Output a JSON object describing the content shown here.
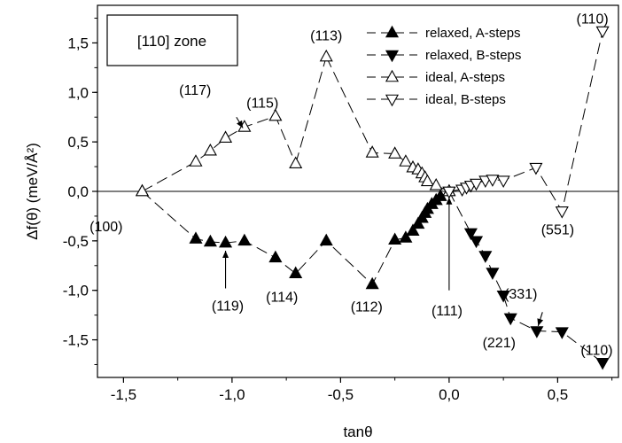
{
  "chart_data": {
    "type": "line",
    "title": "",
    "xlabel": "tanθ",
    "ylabel": "Δf(θ) (meV/Å²)",
    "xlim": [
      -1.62,
      0.78
    ],
    "ylim": [
      -1.88,
      1.88
    ],
    "xticks": [
      -1.5,
      -1.0,
      -0.5,
      0.0,
      0.5
    ],
    "xtick_labels": [
      "-1,5",
      "-1,0",
      "-0,5",
      "0,0",
      "0,5"
    ],
    "yticks": [
      -1.5,
      -1.0,
      -0.5,
      0.0,
      0.5,
      1.0,
      1.5
    ],
    "ytick_labels": [
      "-1,5",
      "-1,0",
      "-0,5",
      "0,0",
      "0,5",
      "1,0",
      "1,5"
    ],
    "zone_label": "[110] zone",
    "legend_position": "top-right",
    "series": [
      {
        "name": "relaxed, A-steps",
        "marker": "triangle-up-filled",
        "x": [
          -1.414,
          -1.167,
          -1.1,
          -1.03,
          -0.943,
          -0.8,
          -0.707,
          -0.566,
          -0.354,
          -0.25,
          -0.2,
          -0.167,
          -0.143,
          -0.125,
          -0.111,
          -0.1,
          -0.08,
          -0.06,
          -0.04,
          0.0
        ],
        "y": [
          0.0,
          -0.48,
          -0.51,
          -0.52,
          -0.5,
          -0.67,
          -0.83,
          -0.5,
          -0.94,
          -0.49,
          -0.47,
          -0.4,
          -0.33,
          -0.27,
          -0.22,
          -0.18,
          -0.13,
          -0.09,
          -0.05,
          0.0
        ]
      },
      {
        "name": "relaxed, B-steps",
        "marker": "triangle-down-filled",
        "x": [
          0.0,
          0.1,
          0.125,
          0.167,
          0.2,
          0.25,
          0.283,
          0.404,
          0.52,
          0.707
        ],
        "y": [
          0.0,
          -0.42,
          -0.5,
          -0.65,
          -0.82,
          -1.05,
          -1.28,
          -1.41,
          -1.42,
          -1.73
        ]
      },
      {
        "name": "ideal, A-steps",
        "marker": "triangle-up-open",
        "x": [
          -1.414,
          -1.167,
          -1.1,
          -1.03,
          -0.943,
          -0.8,
          -0.707,
          -0.566,
          -0.354,
          -0.25,
          -0.2,
          -0.167,
          -0.143,
          -0.125,
          -0.111,
          -0.1,
          -0.06,
          0.0
        ],
        "y": [
          0.0,
          0.3,
          0.41,
          0.54,
          0.65,
          0.76,
          0.28,
          1.36,
          0.39,
          0.38,
          0.3,
          0.24,
          0.22,
          0.18,
          0.14,
          0.1,
          0.06,
          0.0
        ],
        "connect": [
          [
            0,
            6
          ],
          [
            6,
            7
          ],
          [
            7,
            17
          ]
        ]
      },
      {
        "name": "ideal, B-steps",
        "marker": "triangle-down-open",
        "x": [
          0.0,
          0.06,
          0.08,
          0.1,
          0.125,
          0.167,
          0.2,
          0.25,
          0.4,
          0.52,
          0.707
        ],
        "y": [
          0.0,
          0.02,
          0.04,
          0.06,
          0.08,
          0.11,
          0.12,
          0.11,
          0.24,
          -0.2,
          1.62
        ]
      }
    ],
    "annotations": [
      {
        "text": "(110)",
        "x": 0.66,
        "y": 1.75
      },
      {
        "text": "(113)",
        "x": -0.566,
        "y": 1.58
      },
      {
        "text": "(117)",
        "x": -1.17,
        "y": 1.03
      },
      {
        "text": "(115)",
        "x": -0.86,
        "y": 0.9
      },
      {
        "text": "(100)",
        "x": -1.58,
        "y": -0.35
      },
      {
        "text": "(551)",
        "x": 0.5,
        "y": -0.38
      },
      {
        "text": "(119)",
        "x": -1.02,
        "y": -1.15
      },
      {
        "text": "(114)",
        "x": -0.77,
        "y": -1.06
      },
      {
        "text": "(112)",
        "x": -0.38,
        "y": -1.16
      },
      {
        "text": "(111)",
        "x": -0.01,
        "y": -1.2
      },
      {
        "text": "(331)",
        "x": 0.33,
        "y": -1.03
      },
      {
        "text": "(221)",
        "x": 0.23,
        "y": -1.52
      },
      {
        "text": "(110)",
        "x": 0.68,
        "y": -1.6
      }
    ],
    "arrows": [
      {
        "from": [
          -0.98,
          0.75
        ],
        "to": [
          -0.95,
          0.64
        ]
      },
      {
        "from": [
          -1.03,
          -0.98
        ],
        "to": [
          -1.03,
          -0.6
        ]
      },
      {
        "from": [
          0.0,
          -1.0
        ],
        "to": [
          0.0,
          -0.06
        ]
      },
      {
        "from": [
          0.43,
          -1.22
        ],
        "to": [
          0.41,
          -1.36
        ]
      }
    ]
  }
}
